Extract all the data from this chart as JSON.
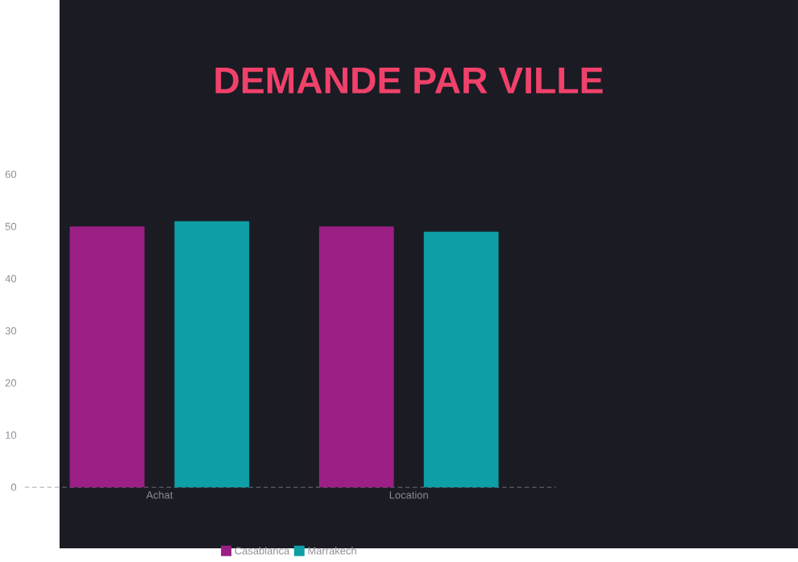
{
  "chart_data": {
    "type": "bar",
    "title": "DEMANDE PAR VILLE",
    "categories": [
      "Achat",
      "Location"
    ],
    "series": [
      {
        "name": "Casablanca",
        "color": "#9b1f85",
        "values": [
          50,
          50
        ]
      },
      {
        "name": "Marrakech",
        "color": "#0e9ea6",
        "values": [
          51,
          49
        ]
      }
    ],
    "ylim": [
      0,
      60
    ],
    "yticks": [
      0,
      10,
      20,
      30,
      40,
      50,
      60
    ],
    "grid": false,
    "legend": "bottom"
  }
}
